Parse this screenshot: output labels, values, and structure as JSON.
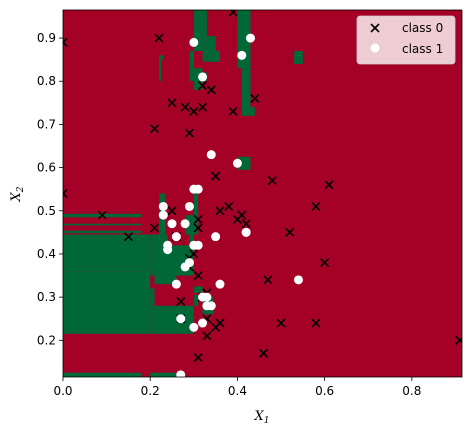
{
  "chart_data": {
    "type": "scatter",
    "title": "",
    "xlabel": "X",
    "xlabel_sub": "1",
    "ylabel": "X",
    "ylabel_sub": "2",
    "xlim": [
      0.0,
      0.915
    ],
    "ylim": [
      0.115,
      0.965
    ],
    "xticks": [
      0.0,
      0.2,
      0.4,
      0.6,
      0.8
    ],
    "xtick_labels": [
      "0.0",
      "0.2",
      "0.4",
      "0.6",
      "0.8"
    ],
    "yticks": [
      0.2,
      0.3,
      0.4,
      0.5,
      0.6,
      0.7,
      0.8,
      0.9
    ],
    "ytick_labels": [
      "0.2",
      "0.3",
      "0.4",
      "0.5",
      "0.6",
      "0.7",
      "0.8",
      "0.9"
    ],
    "grid": false,
    "legend_position": "top-right",
    "colors": {
      "background_region": "#a50026",
      "class1_region": "#006837",
      "class1_marker": "#ffffff",
      "class0_marker": "#000000"
    },
    "decision_regions": [
      {
        "label": "class 1",
        "x": [
          0.0,
          0.2
        ],
        "y": [
          0.215,
          0.36
        ]
      },
      {
        "label": "class 1",
        "x": [
          0.0,
          0.2
        ],
        "y": [
          0.36,
          0.445
        ]
      },
      {
        "label": "class 1",
        "x": [
          0.0,
          0.18
        ],
        "y": [
          0.448,
          0.454
        ]
      },
      {
        "label": "class 1",
        "x": [
          0.0,
          0.18
        ],
        "y": [
          0.466,
          0.47
        ]
      },
      {
        "label": "class 1",
        "x": [
          0.0,
          0.18
        ],
        "y": [
          0.485,
          0.493
        ]
      },
      {
        "label": "class 1",
        "x": [
          0.2,
          0.3
        ],
        "y": [
          0.215,
          0.28
        ]
      },
      {
        "label": "class 1",
        "x": [
          0.2,
          0.21
        ],
        "y": [
          0.28,
          0.32
        ]
      },
      {
        "label": "class 1",
        "x": [
          0.21,
          0.26
        ],
        "y": [
          0.33,
          0.35
        ]
      },
      {
        "label": "class 1",
        "x": [
          0.2,
          0.3
        ],
        "y": [
          0.35,
          0.42
        ]
      },
      {
        "label": "class 1",
        "x": [
          0.2,
          0.24
        ],
        "y": [
          0.42,
          0.445
        ]
      },
      {
        "label": "class 1",
        "x": [
          0.22,
          0.235
        ],
        "y": [
          0.445,
          0.54
        ]
      },
      {
        "label": "class 1",
        "x": [
          0.28,
          0.31
        ],
        "y": [
          0.445,
          0.49
        ]
      },
      {
        "label": "class 1",
        "x": [
          0.3,
          0.31
        ],
        "y": [
          0.49,
          0.56
        ]
      },
      {
        "label": "class 1",
        "x": [
          0.29,
          0.3
        ],
        "y": [
          0.405,
          0.445
        ]
      },
      {
        "label": "class 1",
        "x": [
          0.3,
          0.32
        ],
        "y": [
          0.31,
          0.325
        ]
      },
      {
        "label": "class 1",
        "x": [
          0.3,
          0.31
        ],
        "y": [
          0.28,
          0.305
        ]
      },
      {
        "label": "class 1",
        "x": [
          0.32,
          0.345
        ],
        "y": [
          0.26,
          0.3
        ]
      },
      {
        "label": "class 1",
        "x": [
          0.355,
          0.365
        ],
        "y": [
          0.32,
          0.335
        ]
      },
      {
        "label": "class 1",
        "x": [
          0.415,
          0.425
        ],
        "y": [
          0.44,
          0.455
        ]
      },
      {
        "label": "class 1",
        "x": [
          0.535,
          0.54
        ],
        "y": [
          0.335,
          0.345
        ]
      },
      {
        "label": "class 1",
        "x": [
          0.4,
          0.43
        ],
        "y": [
          0.595,
          0.625
        ]
      },
      {
        "label": "class 1",
        "x": [
          0.3,
          0.32
        ],
        "y": [
          0.87,
          0.965
        ]
      },
      {
        "label": "class 1",
        "x": [
          0.32,
          0.33
        ],
        "y": [
          0.845,
          0.965
        ]
      },
      {
        "label": "class 1",
        "x": [
          0.33,
          0.35
        ],
        "y": [
          0.845,
          0.905
        ]
      },
      {
        "label": "class 1",
        "x": [
          0.35,
          0.36
        ],
        "y": [
          0.845,
          0.87
        ]
      },
      {
        "label": "class 1",
        "x": [
          0.29,
          0.3
        ],
        "y": [
          0.8,
          0.87
        ]
      },
      {
        "label": "class 1",
        "x": [
          0.3,
          0.32
        ],
        "y": [
          0.78,
          0.83
        ]
      },
      {
        "label": "class 1",
        "x": [
          0.32,
          0.33
        ],
        "y": [
          0.8,
          0.82
        ]
      },
      {
        "label": "class 1",
        "x": [
          0.22,
          0.225
        ],
        "y": [
          0.8,
          0.85
        ]
      },
      {
        "label": "class 1",
        "x": [
          0.22,
          0.23
        ],
        "y": [
          0.85,
          0.86
        ]
      },
      {
        "label": "class 1",
        "x": [
          0.4,
          0.43
        ],
        "y": [
          0.83,
          0.965
        ]
      },
      {
        "label": "class 1",
        "x": [
          0.41,
          0.43
        ],
        "y": [
          0.72,
          0.86
        ]
      },
      {
        "label": "class 1",
        "x": [
          0.43,
          0.44
        ],
        "y": [
          0.72,
          0.74
        ]
      },
      {
        "label": "class 1",
        "x": [
          0.53,
          0.55
        ],
        "y": [
          0.84,
          0.87
        ]
      },
      {
        "label": "class 1",
        "x": [
          0.0,
          0.18
        ],
        "y": [
          0.115,
          0.125
        ]
      },
      {
        "label": "class 1",
        "x": [
          0.2,
          0.26
        ],
        "y": [
          0.115,
          0.125
        ]
      }
    ],
    "series": [
      {
        "name": "class 0",
        "marker": "x",
        "color": "#000000",
        "x": [
          0.0,
          0.0,
          0.09,
          0.15,
          0.21,
          0.21,
          0.22,
          0.25,
          0.25,
          0.26,
          0.27,
          0.27,
          0.28,
          0.29,
          0.29,
          0.29,
          0.3,
          0.3,
          0.31,
          0.31,
          0.31,
          0.31,
          0.32,
          0.32,
          0.32,
          0.33,
          0.33,
          0.33,
          0.34,
          0.35,
          0.35,
          0.36,
          0.36,
          0.38,
          0.39,
          0.39,
          0.4,
          0.41,
          0.42,
          0.44,
          0.46,
          0.47,
          0.48,
          0.5,
          0.52,
          0.58,
          0.58,
          0.6,
          0.61,
          0.91
        ],
        "y": [
          0.89,
          0.54,
          0.49,
          0.44,
          0.46,
          0.69,
          0.9,
          0.5,
          0.75,
          0.44,
          0.29,
          0.25,
          0.74,
          0.68,
          0.37,
          0.39,
          0.4,
          0.73,
          0.46,
          0.48,
          0.35,
          0.16,
          0.74,
          0.79,
          0.3,
          0.31,
          0.25,
          0.21,
          0.78,
          0.58,
          0.23,
          0.5,
          0.24,
          0.51,
          0.73,
          0.96,
          0.48,
          0.49,
          0.47,
          0.76,
          0.17,
          0.34,
          0.57,
          0.24,
          0.45,
          0.51,
          0.24,
          0.38,
          0.56,
          0.2
        ]
      },
      {
        "name": "class 1",
        "marker": "o",
        "color": "#ffffff",
        "x": [
          0.23,
          0.23,
          0.24,
          0.24,
          0.25,
          0.26,
          0.26,
          0.27,
          0.28,
          0.28,
          0.29,
          0.29,
          0.3,
          0.3,
          0.3,
          0.31,
          0.31,
          0.32,
          0.32,
          0.33,
          0.33,
          0.34,
          0.34,
          0.35,
          0.36,
          0.4,
          0.41,
          0.42,
          0.42,
          0.43,
          0.54,
          0.3,
          0.32,
          0.27
        ],
        "y": [
          0.49,
          0.51,
          0.42,
          0.41,
          0.47,
          0.33,
          0.44,
          0.25,
          0.47,
          0.37,
          0.51,
          0.38,
          0.55,
          0.42,
          0.23,
          0.55,
          0.42,
          0.3,
          0.81,
          0.3,
          0.28,
          0.28,
          0.63,
          0.44,
          0.33,
          0.61,
          0.86,
          0.45,
          0.45,
          0.9,
          0.34,
          0.89,
          0.24,
          0.12
        ]
      }
    ]
  }
}
